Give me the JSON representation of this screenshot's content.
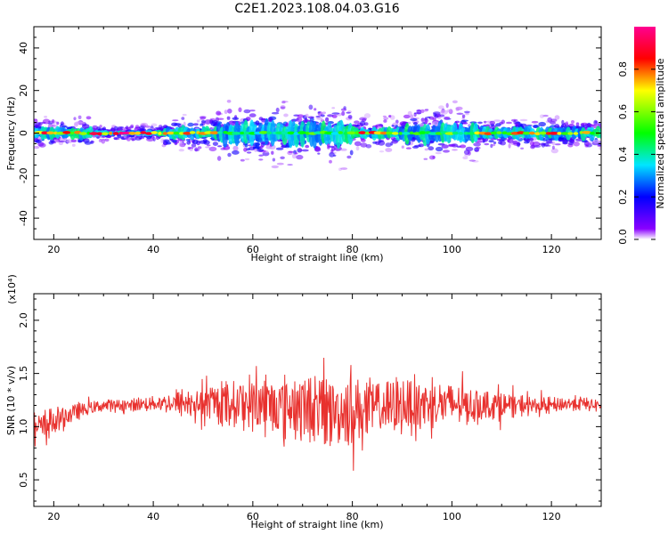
{
  "title": "C2E1.2023.108.04.03.G16",
  "chart_data": [
    {
      "type": "heatmap",
      "xlabel": "Height of straight line (km)",
      "ylabel": "Frequency (Hz)",
      "xlim": [
        16,
        130
      ],
      "ylim": [
        -50,
        50
      ],
      "x_ticks": [
        20,
        40,
        60,
        80,
        100,
        120
      ],
      "y_ticks": [
        -40,
        -20,
        0,
        20,
        40
      ],
      "colorbar": {
        "label": "Normalized spectral amplitude",
        "range": [
          0,
          1
        ],
        "ticks": [
          "0.0",
          "0.2",
          "0.4",
          "0.6",
          "0.8"
        ],
        "colors": [
          "#ffffff",
          "#8a00ff",
          "#0000ff",
          "#00e5ff",
          "#00ff00",
          "#ffff00",
          "#ff0000",
          "#ff0090"
        ]
      },
      "bands": [
        {
          "x": [
            16,
            28
          ],
          "halfwidth_hz": 3.0,
          "core_amplitude": 0.9
        },
        {
          "x": [
            28,
            42
          ],
          "halfwidth_hz": 1.5,
          "core_amplitude": 1.0
        },
        {
          "x": [
            42,
            53
          ],
          "halfwidth_hz": 3.5,
          "core_amplitude": 0.85
        },
        {
          "x": [
            53,
            80
          ],
          "halfwidth_hz": 6.0,
          "core_amplitude": 0.6
        },
        {
          "x": [
            80,
            90
          ],
          "halfwidth_hz": 3.0,
          "core_amplitude": 0.9
        },
        {
          "x": [
            90,
            105
          ],
          "halfwidth_hz": 5.0,
          "core_amplitude": 0.65
        },
        {
          "x": [
            105,
            130
          ],
          "halfwidth_hz": 3.0,
          "core_amplitude": 0.9
        }
      ]
    },
    {
      "type": "line",
      "xlabel": "Height of straight line (km)",
      "ylabel": "SNR (10 * v/v)",
      "multiplier": "(x10⁴)",
      "xlim": [
        16,
        130
      ],
      "ylim": [
        0.25,
        2.25
      ],
      "x_ticks": [
        20,
        40,
        60,
        80,
        100,
        120
      ],
      "y_ticks": [
        0.5,
        1.0,
        1.5,
        2.0
      ],
      "y_tick_labels": [
        "0.5",
        "1.0",
        "1.5",
        "2.0"
      ],
      "color": "#e8312e",
      "envelope": {
        "x": [
          16,
          20,
          25,
          30,
          35,
          40,
          45,
          50,
          55,
          60,
          65,
          70,
          75,
          80,
          85,
          90,
          95,
          100,
          105,
          110,
          115,
          120,
          125,
          130
        ],
        "mean": [
          0.95,
          1.05,
          1.15,
          1.2,
          1.2,
          1.22,
          1.22,
          1.22,
          1.22,
          1.22,
          1.2,
          1.18,
          1.15,
          1.15,
          1.18,
          1.2,
          1.22,
          1.22,
          1.2,
          1.2,
          1.2,
          1.2,
          1.22,
          1.2
        ],
        "amplitude": [
          0.3,
          0.25,
          0.12,
          0.1,
          0.1,
          0.12,
          0.2,
          0.25,
          0.35,
          0.45,
          0.5,
          0.5,
          0.55,
          0.55,
          0.45,
          0.45,
          0.4,
          0.35,
          0.3,
          0.2,
          0.15,
          0.12,
          0.12,
          0.1
        ]
      }
    }
  ]
}
